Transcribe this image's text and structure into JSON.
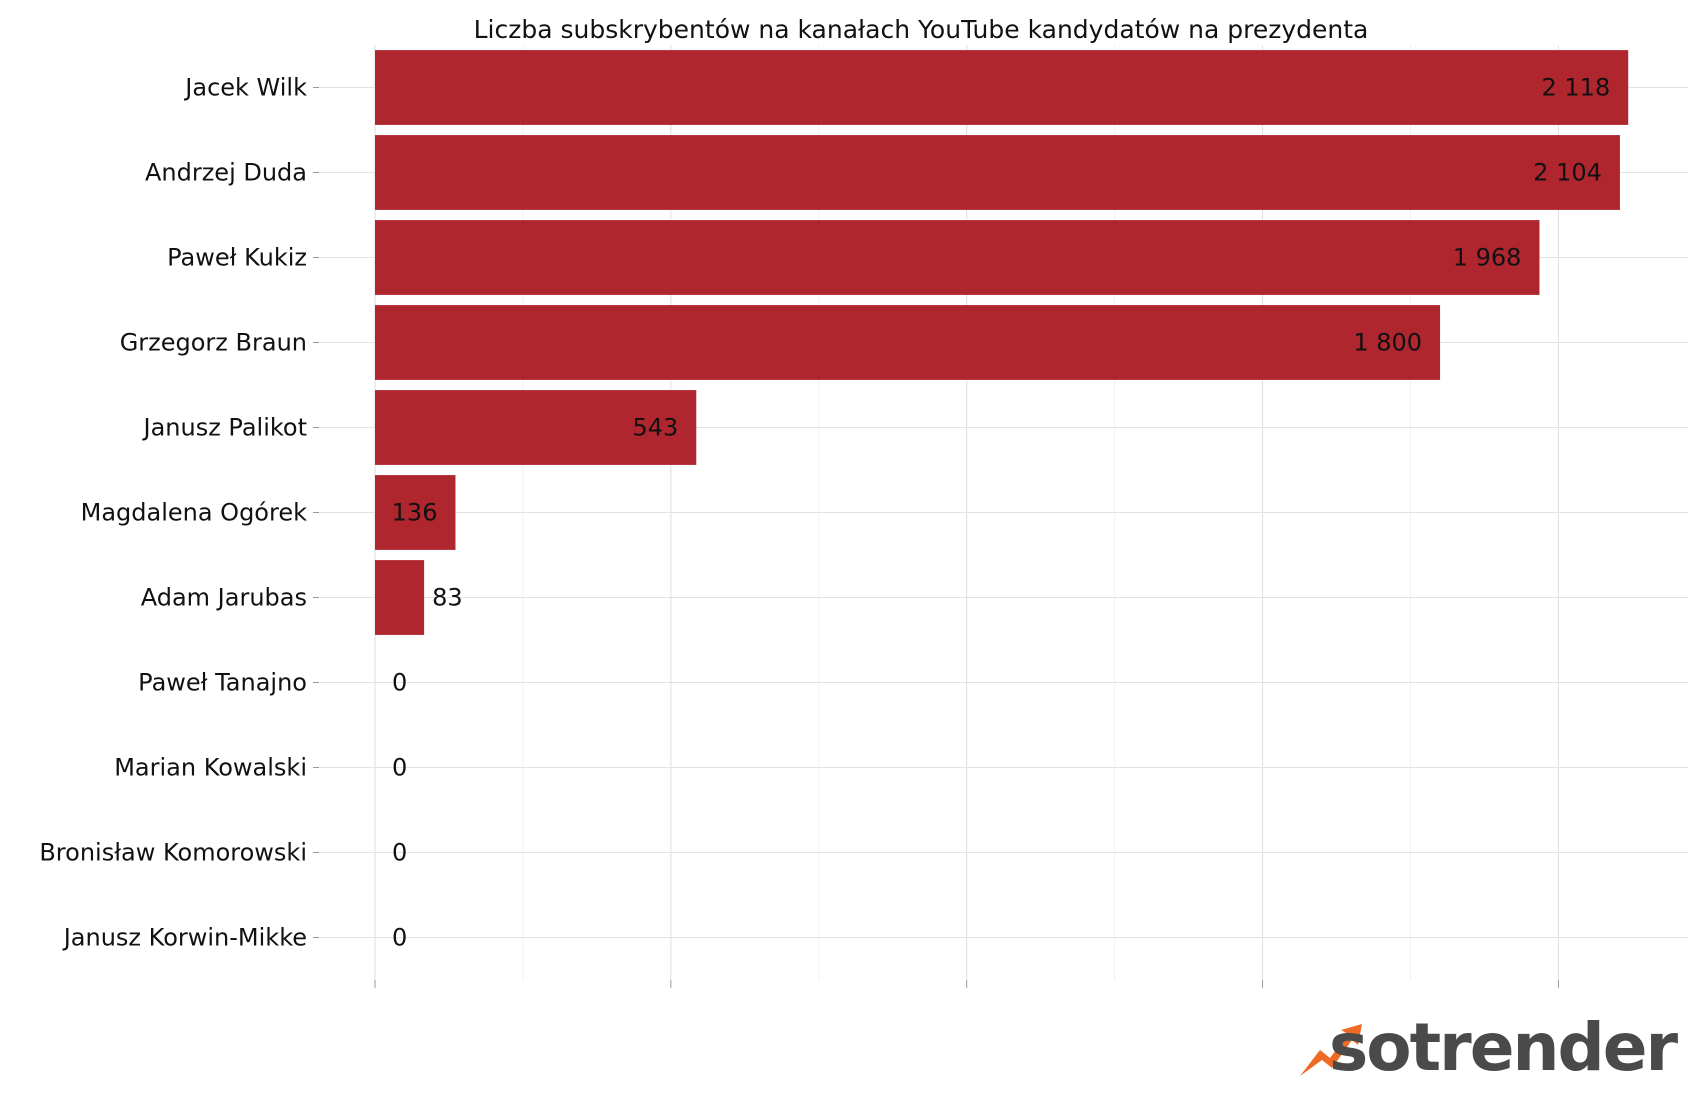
{
  "chart_data": {
    "type": "bar",
    "orientation": "horizontal",
    "title": "Liczba subskrybentów na kanałach YouTube kandydatów na prezydenta",
    "categories": [
      "Jacek Wilk",
      "Andrzej Duda",
      "Paweł Kukiz",
      "Grzegorz Braun",
      "Janusz Palikot",
      "Magdalena Ogórek",
      "Adam Jarubas",
      "Paweł Tanajno",
      "Marian Kowalski",
      "Bronisław Komorowski",
      "Janusz Korwin-Mikke"
    ],
    "values": [
      2118,
      2104,
      1968,
      1800,
      543,
      136,
      83,
      0,
      0,
      0,
      0
    ],
    "value_labels": [
      "2 118",
      "2 104",
      "1 968",
      "1 800",
      "543",
      "136",
      "83",
      "0",
      "0",
      "0",
      "0"
    ],
    "xlim": [
      0,
      2200
    ],
    "grid": true,
    "bar_color": "#b0262f",
    "grid_color": "#dddddd"
  },
  "branding": {
    "logo_text": "sotrender",
    "logo_name": "sotrender-logo",
    "arrow_color": "#ef6a25"
  }
}
